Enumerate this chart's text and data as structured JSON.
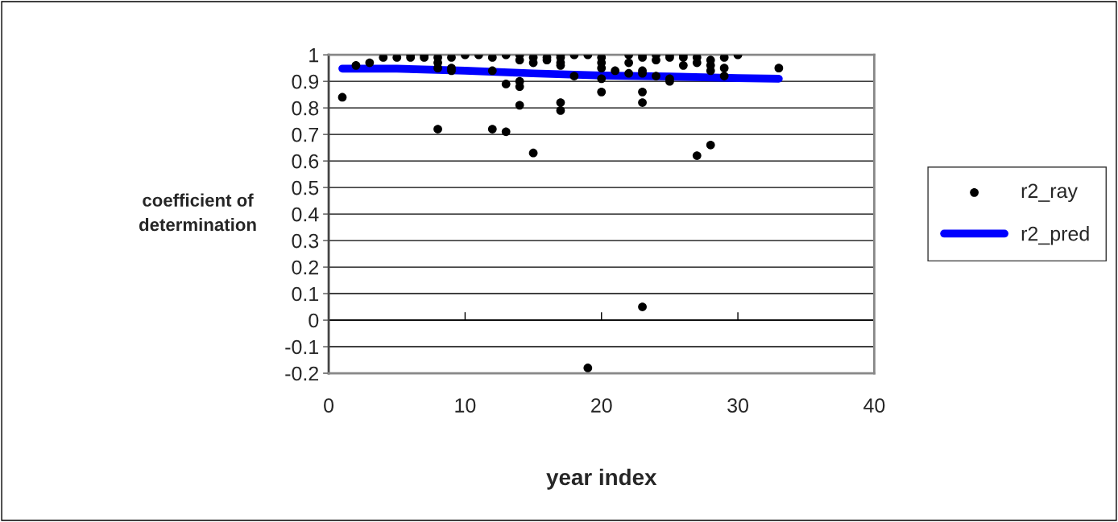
{
  "chart_data": {
    "type": "scatter",
    "xlabel": "year index",
    "ylabel": "coefficient of\ndetermination",
    "xlim": [
      0,
      40
    ],
    "xticks": [
      0,
      10,
      20,
      30,
      40
    ],
    "ylim": [
      -0.2,
      1
    ],
    "yticks": [
      -0.2,
      -0.1,
      0,
      0.1,
      0.2,
      0.3,
      0.4,
      0.5,
      0.6,
      0.7,
      0.8,
      0.9,
      1
    ],
    "grid": "y",
    "legend": "right",
    "marker": "circle",
    "series": [
      {
        "name": "r2_ray",
        "color": "#000000",
        "x": [
          1,
          2,
          3,
          4,
          5,
          6,
          6,
          7,
          7,
          8,
          8,
          8,
          8,
          9,
          9,
          9,
          10,
          11,
          12,
          12,
          12,
          13,
          13,
          13,
          14,
          14,
          14,
          14,
          14,
          15,
          15,
          15,
          16,
          16,
          17,
          17,
          17,
          17,
          17,
          17,
          18,
          18,
          19,
          19,
          20,
          20,
          20,
          20,
          20,
          21,
          22,
          22,
          22,
          23,
          23,
          23,
          23,
          23,
          23,
          23,
          24,
          24,
          24,
          25,
          25,
          25,
          25,
          26,
          26,
          26,
          27,
          27,
          27,
          28,
          28,
          28,
          28,
          29,
          29,
          29,
          30,
          33
        ],
        "values": [
          0.84,
          0.96,
          0.97,
          0.99,
          0.99,
          1.0,
          0.99,
          1.0,
          0.99,
          0.99,
          0.97,
          0.95,
          0.72,
          0.99,
          0.95,
          0.94,
          1.0,
          1.0,
          0.99,
          0.94,
          0.72,
          1.0,
          0.89,
          0.71,
          1.0,
          0.98,
          0.9,
          0.88,
          0.81,
          0.99,
          0.97,
          0.63,
          0.99,
          0.98,
          1.0,
          0.99,
          0.97,
          0.96,
          0.82,
          0.79,
          1.0,
          0.92,
          1.0,
          -0.18,
          0.99,
          0.97,
          0.95,
          0.91,
          0.86,
          0.94,
          1.0,
          0.97,
          0.93,
          1.0,
          0.99,
          0.94,
          0.93,
          0.86,
          0.82,
          0.05,
          1.0,
          0.98,
          0.92,
          1.0,
          0.99,
          0.91,
          0.9,
          1.0,
          0.99,
          0.96,
          0.99,
          0.97,
          0.62,
          0.98,
          0.96,
          0.94,
          0.66,
          0.99,
          0.95,
          0.92,
          1.0,
          0.95
        ]
      },
      {
        "name": "r2_pred",
        "type": "line",
        "color": "#0000ff",
        "marker": "none",
        "x": [
          1,
          5,
          10,
          15,
          20,
          25,
          30,
          33
        ],
        "values": [
          0.948,
          0.948,
          0.94,
          0.93,
          0.922,
          0.918,
          0.912,
          0.91
        ]
      }
    ]
  }
}
